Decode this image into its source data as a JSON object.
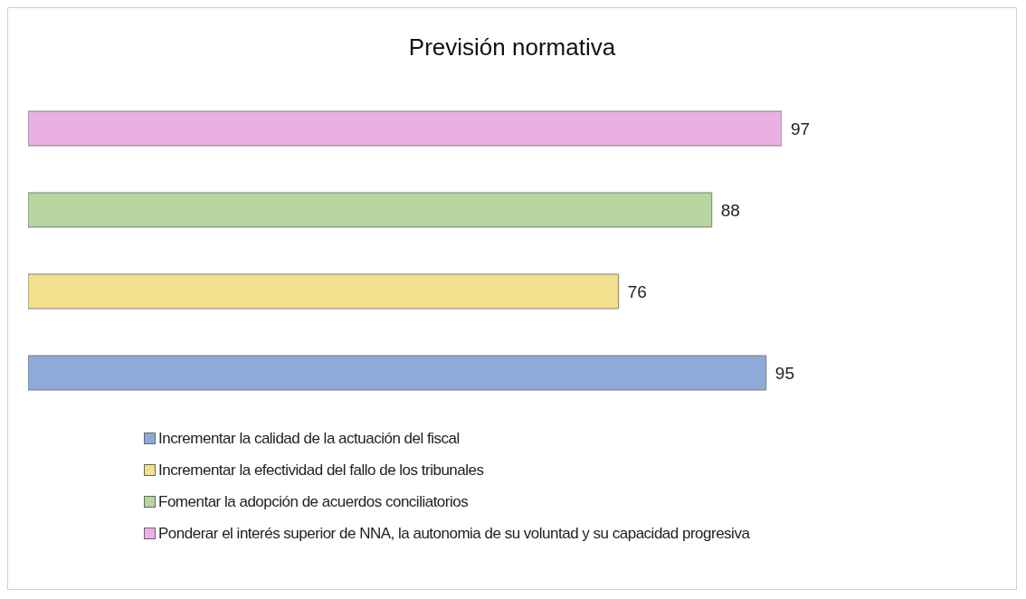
{
  "chart_data": {
    "type": "bar",
    "title": "Previsión normativa",
    "orientation": "horizontal",
    "stacked": true,
    "categories": [
      null,
      null,
      null,
      null
    ],
    "series": [
      {
        "name": "Incrementar la calidad de la actuación del fiscal",
        "color": "#8eaadb",
        "values": [
          null,
          null,
          null,
          95
        ]
      },
      {
        "name": "Incrementar la efectividad del fallo de los tribunales",
        "color": "#f3e08c",
        "values": [
          null,
          null,
          76,
          null
        ]
      },
      {
        "name": "Fomentar la adopción de acuerdos conciliatorios",
        "color": "#b7d59e",
        "values": [
          null,
          88,
          null,
          null
        ]
      },
      {
        "name": "Ponderar el interés superior de NNA, la autonomia de su voluntad y su capacidad progresiva",
        "color": "#eab0e6",
        "values": [
          97,
          null,
          null,
          null
        ]
      }
    ],
    "tick_labels": false,
    "data_labels": true,
    "legend": "bottom"
  }
}
